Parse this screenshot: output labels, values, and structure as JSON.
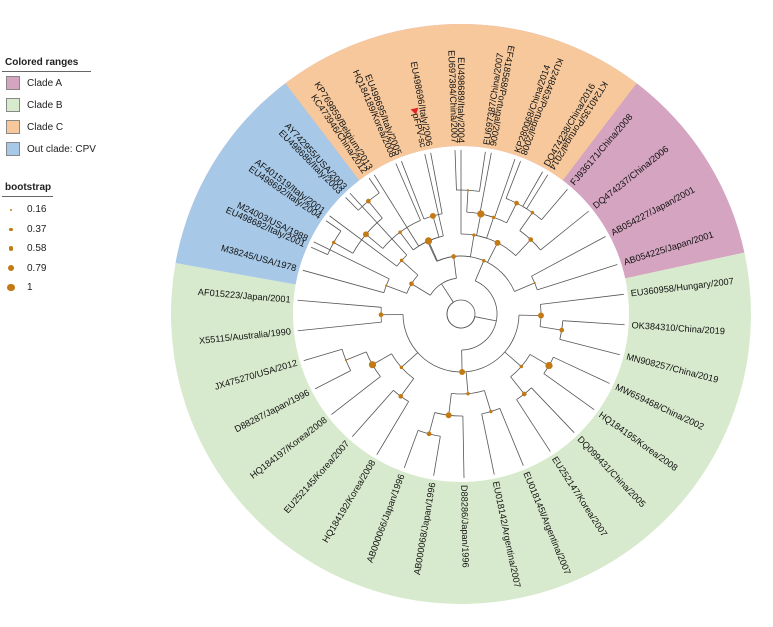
{
  "legend_ranges": {
    "title": "Colored ranges",
    "items": [
      {
        "label": "Clade A",
        "color": "#d4a4c0"
      },
      {
        "label": "Clade B",
        "color": "#d8eacd"
      },
      {
        "label": "Clade C",
        "color": "#f6c89b"
      },
      {
        "label": "Out clade: CPV",
        "color": "#a7c8e6"
      }
    ]
  },
  "legend_bootstrap": {
    "title": "bootstrap",
    "items": [
      "0.16",
      "0.37",
      "0.58",
      "0.79",
      "1"
    ],
    "values": [
      0.16,
      0.37,
      0.58,
      0.79,
      1
    ],
    "marker_color": "#c47a14"
  },
  "query_marker_color": "#e0252b",
  "tips": [
    {
      "label": "EU498682/Italy/2001",
      "clade": "Clade A"
    },
    {
      "label": "EU498692/Italy/2004",
      "clade": "Clade A"
    },
    {
      "label": "EU498686/Italy/2003",
      "clade": "Clade A"
    },
    {
      "label": "KC473946/China/2012",
      "clade": "Clade A"
    },
    {
      "label": "HQ184189/Korea/2008",
      "clade": "Clade A"
    },
    {
      "label": "pFPV-sc",
      "clade": "Clade A",
      "query": true
    },
    {
      "label": "EU697384/China/2007",
      "clade": "Clade A"
    },
    {
      "label": "EU697387/China/2007",
      "clade": "Clade A"
    },
    {
      "label": "KP280068/China/2014",
      "clade": "Clade A"
    },
    {
      "label": "DQ474238/China/2016",
      "clade": "Clade A"
    },
    {
      "label": "FJ936171/China/2008",
      "clade": "Clade A"
    },
    {
      "label": "DQ474237/China/2006",
      "clade": "Clade A"
    },
    {
      "label": "AB054227/Japan/2001",
      "clade": "Clade A"
    },
    {
      "label": "AB054225/Japan/2001",
      "clade": "Clade A"
    },
    {
      "label": "EU360958/Hungary/2007",
      "clade": "Clade B"
    },
    {
      "label": "OK384310/China/2019",
      "clade": "Clade B"
    },
    {
      "label": "MN908257/China/2019",
      "clade": "Clade B"
    },
    {
      "label": "MW659468/China/2002",
      "clade": "Clade B"
    },
    {
      "label": "HQ184195/Korea/2008",
      "clade": "Clade B"
    },
    {
      "label": "DQ099431/China/2005",
      "clade": "Clade B"
    },
    {
      "label": "EU252147/Korea/2007",
      "clade": "Clade B"
    },
    {
      "label": "EU018145l/Argentina/2007",
      "clade": "Clade B"
    },
    {
      "label": "EU018142/Argentina/2007",
      "clade": "Clade B"
    },
    {
      "label": "D88286/Japan/1996",
      "clade": "Clade B"
    },
    {
      "label": "AB000068/Japan/1996",
      "clade": "Clade B"
    },
    {
      "label": "AB000066/Japan/1996",
      "clade": "Clade B"
    },
    {
      "label": "HQ184192/Korea/2008",
      "clade": "Clade B"
    },
    {
      "label": "EU252145/Korea/2007",
      "clade": "Clade B"
    },
    {
      "label": "HQ184197/Korea/2008",
      "clade": "Clade B"
    },
    {
      "label": "D88287/Japan/1996",
      "clade": "Clade B"
    },
    {
      "label": "JX475270/USA/2012",
      "clade": "Clade B"
    },
    {
      "label": "X55115/Australia/1990",
      "clade": "Clade B"
    },
    {
      "label": "AF015223/Japan/2001",
      "clade": "Clade B"
    },
    {
      "label": "M38245/USA/1978",
      "clade": "Out clade: CPV"
    },
    {
      "label": "M24003/USA/1988",
      "clade": "Out clade: CPV"
    },
    {
      "label": "AF401519/Italy/2001",
      "clade": "Out clade: CPV"
    },
    {
      "label": "AY742955/USA/2003",
      "clade": "Out clade: CPV"
    },
    {
      "label": "KP769859/Belgium/2013",
      "clade": "Clade C"
    },
    {
      "label": "EU498695/Italy/2005",
      "clade": "Clade C"
    },
    {
      "label": "EU498696/Italy/2006",
      "clade": "Clade C"
    },
    {
      "label": "EU498689/Italy/2004",
      "clade": "Clade C"
    },
    {
      "label": "EF418568/Portugal/2006",
      "clade": "Clade C"
    },
    {
      "label": "KU248463/Portugal/2008",
      "clade": "Clade C"
    },
    {
      "label": "KT240135/Portugal/2014",
      "clade": "Clade C"
    }
  ]
}
